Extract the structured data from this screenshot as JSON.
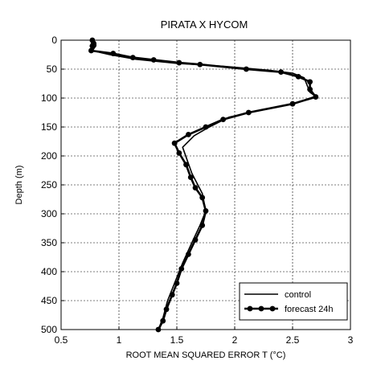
{
  "chart_data": {
    "type": "line",
    "title": "PIRATA X HYCOM",
    "xlabel": "ROOT MEAN SQUARED ERROR  T (°C)",
    "ylabel": "Depth (m)",
    "xlim": [
      0.5,
      3
    ],
    "ylim": [
      500,
      0
    ],
    "y_inverted": true,
    "grid": "dashed",
    "legend_position": "bottom-right",
    "xticks": [
      "0.5",
      "1",
      "1.5",
      "2",
      "2.5",
      "3"
    ],
    "yticks": [
      "0",
      "50",
      "100",
      "150",
      "200",
      "250",
      "300",
      "350",
      "400",
      "450",
      "500"
    ],
    "series": [
      {
        "name": "control",
        "markers": false,
        "color": "#000000",
        "points": [
          [
            0.78,
            0
          ],
          [
            0.8,
            5
          ],
          [
            0.8,
            10
          ],
          [
            0.77,
            18
          ],
          [
            0.92,
            25
          ],
          [
            1.15,
            33
          ],
          [
            1.5,
            40
          ],
          [
            1.9,
            45
          ],
          [
            2.3,
            52
          ],
          [
            2.5,
            57
          ],
          [
            2.6,
            65
          ],
          [
            2.63,
            80
          ],
          [
            2.65,
            90
          ],
          [
            2.7,
            97
          ],
          [
            2.5,
            110
          ],
          [
            2.2,
            122
          ],
          [
            1.95,
            133
          ],
          [
            1.78,
            150
          ],
          [
            1.65,
            165
          ],
          [
            1.55,
            185
          ],
          [
            1.63,
            230
          ],
          [
            1.72,
            265
          ],
          [
            1.75,
            295
          ],
          [
            1.7,
            320
          ],
          [
            1.63,
            350
          ],
          [
            1.55,
            385
          ],
          [
            1.48,
            420
          ],
          [
            1.42,
            450
          ],
          [
            1.38,
            480
          ],
          [
            1.34,
            500
          ]
        ]
      },
      {
        "name": "forecast  24h",
        "markers": true,
        "color": "#000000",
        "points": [
          [
            0.77,
            0
          ],
          [
            0.78,
            5
          ],
          [
            0.77,
            10
          ],
          [
            0.76,
            18
          ],
          [
            0.95,
            23
          ],
          [
            1.12,
            30
          ],
          [
            1.3,
            34
          ],
          [
            1.52,
            39
          ],
          [
            1.7,
            42
          ],
          [
            2.1,
            50
          ],
          [
            2.4,
            55
          ],
          [
            2.55,
            63
          ],
          [
            2.65,
            72
          ],
          [
            2.65,
            85
          ],
          [
            2.7,
            98
          ],
          [
            2.5,
            110
          ],
          [
            2.12,
            125
          ],
          [
            1.9,
            137
          ],
          [
            1.75,
            150
          ],
          [
            1.6,
            163
          ],
          [
            1.48,
            178
          ],
          [
            1.52,
            195
          ],
          [
            1.58,
            215
          ],
          [
            1.62,
            237
          ],
          [
            1.66,
            255
          ],
          [
            1.72,
            272
          ],
          [
            1.75,
            295
          ],
          [
            1.72,
            320
          ],
          [
            1.66,
            345
          ],
          [
            1.6,
            370
          ],
          [
            1.54,
            395
          ],
          [
            1.5,
            420
          ],
          [
            1.46,
            440
          ],
          [
            1.41,
            465
          ],
          [
            1.38,
            485
          ],
          [
            1.34,
            500
          ]
        ]
      }
    ]
  }
}
